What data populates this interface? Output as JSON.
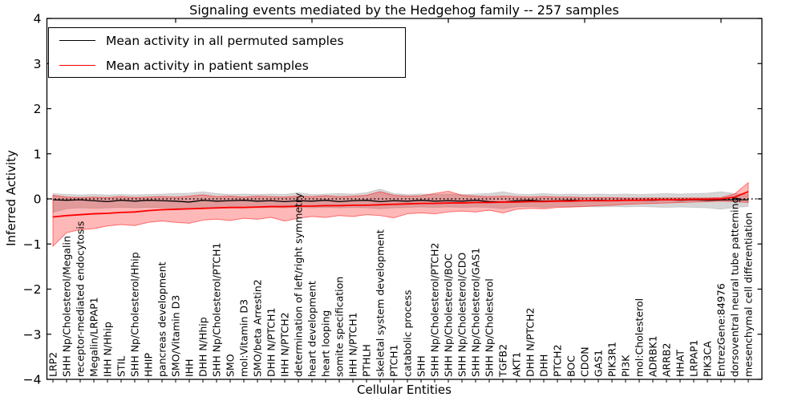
{
  "chart_data": {
    "type": "line",
    "title": "Signaling events mediated by the Hedgehog family -- 257 samples",
    "xlabel": "Cellular Entities",
    "ylabel": "Inferred Activity",
    "ylim": [
      -4,
      4
    ],
    "yticks": [
      4,
      3,
      2,
      1,
      0,
      -1,
      -2,
      -3,
      -4
    ],
    "x_major_tick_indices": [
      9,
      19,
      29,
      39,
      49
    ],
    "grid": false,
    "legend_position": "upper left",
    "background": "#ffffff",
    "zero_line": {
      "value": 0,
      "style": "dotted",
      "color": "#000000"
    },
    "categories": [
      "LRP2",
      "SHH Np/Cholesterol/Megalin",
      "receptor-mediated endocytosis",
      "Megalin/LRPAP1",
      "IHH N/Hhip",
      "STIL",
      "SHH Np/Cholesterol/Hhip",
      "HHIP",
      "pancreas development",
      "SMO/Vitamin D3",
      "IHH",
      "DHH N/Hhip",
      "SHH Np/Cholesterol/PTCH1",
      "SMO",
      "mol:Vitamin D3",
      "SMO/beta Arrestin2",
      "DHH N/PTCH1",
      "IHH N/PTCH2",
      "determination of left/right symmetry",
      "heart development",
      "heart looping",
      "somite specification",
      "IHH N/PTCH1",
      "PTHLH",
      "skeletal system development",
      "PTCH1",
      "catabolic process",
      "SHH",
      "SHH Np/Cholesterol/PTCH2",
      "SHH Np/Cholesterol/BOC",
      "SHH Np/Cholesterol/CDO",
      "SHH Np/Cholesterol/GAS1",
      "SHH Np/Cholesterol",
      "TGFB2",
      "AKT1",
      "DHH N/PTCH2",
      "DHH",
      "PTCH2",
      "BOC",
      "CDON",
      "GAS1",
      "PIK3R1",
      "PI3K",
      "mol:Cholesterol",
      "ADRBK1",
      "ARRB2",
      "HHAT",
      "LRPAP1",
      "PIK3CA",
      "EntrezGene:84976",
      "dorsoventral neural tube patterning",
      "mesenchymal cell differentiation"
    ],
    "series": [
      {
        "name": "Mean activity in all permuted samples",
        "color": "#000000",
        "line_width": 1.3,
        "band_fill": "rgba(0,0,0,0.16)",
        "band_edge": "rgba(0,0,0,0.10)",
        "values": [
          -0.02,
          -0.03,
          -0.02,
          -0.04,
          -0.06,
          -0.03,
          -0.05,
          -0.03,
          -0.04,
          -0.05,
          -0.07,
          -0.03,
          -0.05,
          -0.04,
          -0.03,
          -0.05,
          -0.04,
          -0.06,
          -0.04,
          -0.05,
          -0.03,
          -0.06,
          -0.04,
          -0.03,
          -0.06,
          -0.04,
          -0.05,
          -0.03,
          -0.05,
          -0.04,
          -0.05,
          -0.03,
          -0.06,
          -0.07,
          -0.04,
          -0.03,
          -0.05,
          -0.04,
          -0.03,
          -0.04,
          -0.03,
          -0.04,
          -0.03,
          -0.03,
          -0.03,
          -0.02,
          -0.03,
          -0.02,
          -0.03,
          -0.02,
          -0.02,
          -0.02
        ],
        "band_low": [
          -0.3,
          -0.22,
          -0.2,
          -0.21,
          -0.2,
          -0.19,
          -0.2,
          -0.19,
          -0.2,
          -0.21,
          -0.22,
          -0.2,
          -0.19,
          -0.2,
          -0.19,
          -0.2,
          -0.19,
          -0.2,
          -0.19,
          -0.2,
          -0.19,
          -0.2,
          -0.19,
          -0.2,
          -0.22,
          -0.2,
          -0.19,
          -0.18,
          -0.19,
          -0.18,
          -0.19,
          -0.18,
          -0.19,
          -0.22,
          -0.18,
          -0.17,
          -0.19,
          -0.17,
          -0.18,
          -0.17,
          -0.18,
          -0.17,
          -0.18,
          -0.17,
          -0.18,
          -0.19,
          -0.18,
          -0.19,
          -0.2,
          -0.23,
          -0.19,
          -0.17
        ],
        "band_high": [
          0.12,
          0.1,
          0.09,
          0.1,
          0.09,
          0.1,
          0.09,
          0.1,
          0.11,
          0.12,
          0.13,
          0.16,
          0.12,
          0.1,
          0.11,
          0.1,
          0.11,
          0.1,
          0.14,
          0.1,
          0.11,
          0.12,
          0.11,
          0.14,
          0.22,
          0.12,
          0.1,
          0.11,
          0.1,
          0.11,
          0.1,
          0.11,
          0.12,
          0.16,
          0.11,
          0.1,
          0.12,
          0.1,
          0.11,
          0.1,
          0.11,
          0.1,
          0.11,
          0.1,
          0.11,
          0.12,
          0.11,
          0.12,
          0.13,
          0.16,
          0.12,
          0.1
        ]
      },
      {
        "name": "Mean activity in patient samples",
        "color": "#ff0000",
        "line_width": 1.8,
        "band_fill": "rgba(255,0,0,0.28)",
        "band_edge": "rgba(255,0,0,0.50)",
        "values": [
          -0.4,
          -0.37,
          -0.35,
          -0.33,
          -0.32,
          -0.3,
          -0.29,
          -0.26,
          -0.24,
          -0.23,
          -0.22,
          -0.21,
          -0.2,
          -0.19,
          -0.19,
          -0.18,
          -0.17,
          -0.17,
          -0.16,
          -0.16,
          -0.15,
          -0.15,
          -0.14,
          -0.14,
          -0.13,
          -0.12,
          -0.11,
          -0.1,
          -0.1,
          -0.09,
          -0.09,
          -0.08,
          -0.08,
          -0.07,
          -0.07,
          -0.06,
          -0.06,
          -0.05,
          -0.05,
          -0.04,
          -0.04,
          -0.04,
          -0.03,
          -0.03,
          -0.02,
          -0.02,
          -0.02,
          -0.01,
          -0.01,
          0.0,
          0.04,
          0.16
        ],
        "band_low": [
          -1.05,
          -0.75,
          -0.68,
          -0.66,
          -0.6,
          -0.57,
          -0.59,
          -0.52,
          -0.49,
          -0.52,
          -0.54,
          -0.47,
          -0.45,
          -0.48,
          -0.43,
          -0.45,
          -0.41,
          -0.49,
          -0.43,
          -0.39,
          -0.41,
          -0.37,
          -0.39,
          -0.35,
          -0.37,
          -0.42,
          -0.33,
          -0.31,
          -0.33,
          -0.29,
          -0.27,
          -0.29,
          -0.25,
          -0.31,
          -0.23,
          -0.21,
          -0.22,
          -0.19,
          -0.18,
          -0.17,
          -0.15,
          -0.14,
          -0.12,
          -0.11,
          -0.1,
          -0.09,
          -0.08,
          -0.07,
          -0.06,
          -0.05,
          -0.06,
          -0.08
        ],
        "band_high": [
          0.08,
          0.04,
          0.03,
          0.04,
          0.03,
          0.05,
          0.03,
          0.04,
          0.05,
          0.04,
          0.06,
          0.09,
          0.05,
          0.06,
          0.04,
          0.06,
          0.05,
          0.04,
          0.06,
          0.05,
          0.07,
          0.05,
          0.06,
          0.08,
          0.16,
          0.08,
          0.06,
          0.07,
          0.12,
          0.17,
          0.08,
          0.06,
          0.05,
          0.06,
          0.05,
          0.04,
          0.05,
          0.04,
          0.04,
          0.03,
          0.03,
          0.03,
          0.02,
          0.02,
          0.02,
          0.02,
          0.02,
          0.02,
          0.02,
          0.03,
          0.11,
          0.36
        ]
      }
    ]
  }
}
